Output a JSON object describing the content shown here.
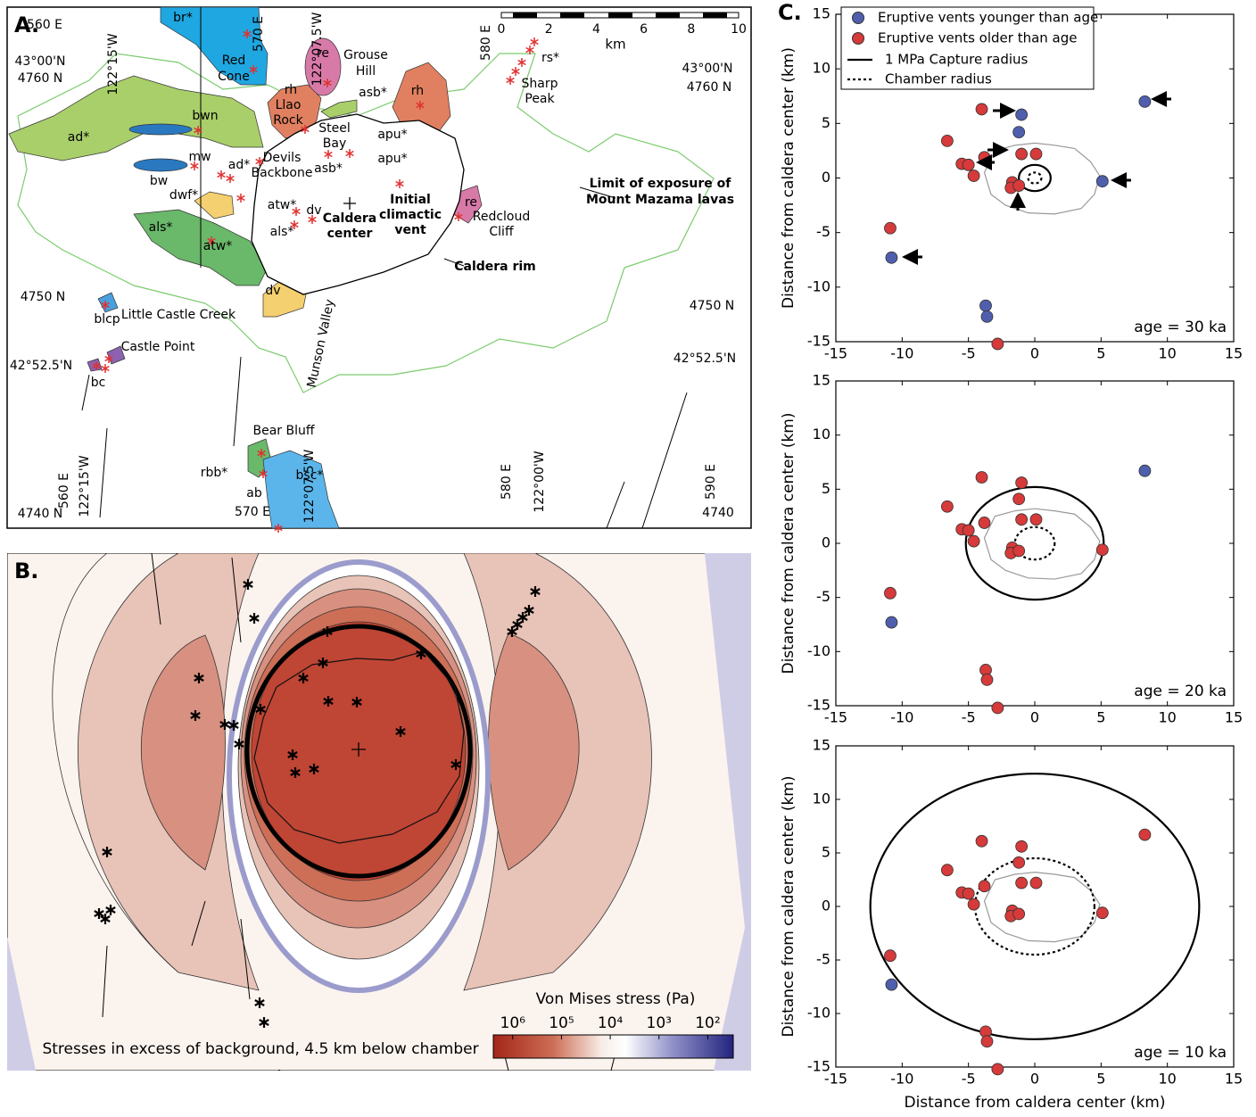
{
  "figure_a": {
    "panel_label": "A.",
    "labels": [
      "560 E",
      "br*",
      "Red",
      "Cone",
      "re",
      "Grouse",
      "Hill",
      "122°15'W",
      "570 E",
      "122°07.5'W",
      "580 E",
      "rs*",
      "Sharp",
      "Peak",
      "43°00'N",
      "4760 N",
      "43°00'N",
      "4760 N",
      "rh",
      "Llao",
      "Rock",
      "asb*",
      "rh",
      "bwn",
      "ad*",
      "Steel",
      "Bay",
      "apu*",
      "apu*",
      "mw",
      "ad*",
      "Devils",
      "Backbone",
      "asb*",
      "bw",
      "dwf*",
      "re",
      "Limit of exposure of",
      "Mount Mazama lavas",
      "Initial",
      "climactic",
      "vent",
      "atw*",
      "dv",
      "als*",
      "Caldera",
      "center",
      "als*",
      "atw*",
      "Redcloud",
      "Cliff",
      "Caldera rim",
      "4750 N",
      "blcp",
      "Little Castle Creek",
      "dv",
      "4750 N",
      "Munson Valley",
      "Castle Point",
      "42°52.5'N",
      "42°52.5'N",
      "bc",
      "Bear Bluff",
      "rbb*",
      "ab",
      "bsc*",
      "560 E",
      "122°15'W",
      "122°07.5'W",
      "570 E",
      "580 E",
      "122°00'W",
      "590 E",
      "4740 N",
      "4740"
    ],
    "scale_bar": {
      "ticks": [
        0,
        2,
        4,
        6,
        8,
        10
      ],
      "unit": "km"
    }
  },
  "figure_b": {
    "panel_label": "B.",
    "caption": "Stresses in excess of background, 4.5 km below chamber",
    "colorbar": {
      "title": "Von Mises stress (Pa)",
      "log": true,
      "lim": [
        2500000,
        30
      ],
      "ticks": [
        {
          "value": 1000000,
          "label": "10⁶"
        },
        {
          "value": 100000,
          "label": "10⁵"
        },
        {
          "value": 10000,
          "label": "10⁴"
        },
        {
          "value": 1000,
          "label": "10³"
        },
        {
          "value": 100,
          "label": "10²"
        }
      ]
    }
  },
  "panel_c_label": "C.",
  "chart_data": [
    {
      "type": "scatter",
      "annotation": "age = 30 ka",
      "ylabel": "Distance from caldera center (km)",
      "xlim": [
        -15,
        15
      ],
      "ylim": [
        -15,
        15
      ],
      "xticks": [
        -15,
        -10,
        -5,
        0,
        5,
        10,
        15
      ],
      "yticks": [
        -15,
        -10,
        -5,
        0,
        5,
        10,
        15
      ],
      "series": [
        {
          "name": "Eruptive vents younger than age",
          "color": "#4f5fae",
          "x": [
            -1,
            -1.2,
            8.3,
            5.1,
            -10.8,
            -3.7,
            -3.6
          ],
          "y": [
            5.8,
            4.2,
            7,
            -0.3,
            -7.3,
            -11.7,
            -12.7
          ]
        },
        {
          "name": "Eruptive vents older than age",
          "color": "#d63a3a",
          "x": [
            -4,
            -6.6,
            -3.8,
            -1,
            0.1,
            -5.5,
            -5,
            -4.6,
            -1.7,
            -1.8,
            -1.2,
            -10.9,
            -2.8
          ],
          "y": [
            6.3,
            3.4,
            1.9,
            2.2,
            2.2,
            1.3,
            1.2,
            0.2,
            -0.4,
            -0.9,
            -0.7,
            -4.6,
            -15.2
          ]
        }
      ],
      "circles": [
        {
          "name": "1 MPa Capture radius",
          "radius": 1.2,
          "style": "solid"
        },
        {
          "name": "Chamber radius",
          "radius": 0.5,
          "style": "dotted"
        }
      ]
    },
    {
      "type": "scatter",
      "annotation": "age = 20 ka",
      "ylabel": "Distance from caldera center (km)",
      "xlim": [
        -15,
        15
      ],
      "ylim": [
        -15,
        15
      ],
      "xticks": [
        -15,
        -10,
        -5,
        0,
        5,
        10,
        15
      ],
      "yticks": [
        -15,
        -10,
        -5,
        0,
        5,
        10,
        15
      ],
      "series": [
        {
          "color": "#4f5fae",
          "x": [
            8.3,
            -10.8
          ],
          "y": [
            6.7,
            -7.3
          ]
        },
        {
          "color": "#d63a3a",
          "x": [
            -4,
            -1,
            -6.6,
            -1.2,
            -3.8,
            -1,
            0.1,
            -5.5,
            -5,
            -4.6,
            -1.7,
            -1.8,
            -1.2,
            5.1,
            -10.9,
            -3.7,
            -3.6,
            -2.8
          ],
          "y": [
            6.1,
            5.6,
            3.4,
            4.1,
            1.9,
            2.2,
            2.2,
            1.3,
            1.2,
            0.2,
            -0.4,
            -0.9,
            -0.7,
            -0.6,
            -4.6,
            -11.7,
            -12.6,
            -15.2
          ]
        }
      ],
      "circles": [
        {
          "radius": 5.2,
          "style": "solid"
        },
        {
          "radius": 1.5,
          "style": "dotted"
        }
      ]
    },
    {
      "type": "scatter",
      "annotation": "age = 10 ka",
      "ylabel": "Distance from caldera center (km)",
      "xlabel": "Distance from caldera center (km)",
      "xlim": [
        -15,
        15
      ],
      "ylim": [
        -15,
        15
      ],
      "xticks": [
        -15,
        -10,
        -5,
        0,
        5,
        10,
        15
      ],
      "yticks": [
        -15,
        -10,
        -5,
        0,
        5,
        10,
        15
      ],
      "series": [
        {
          "color": "#4f5fae",
          "x": [
            -10.8
          ],
          "y": [
            -7.3
          ]
        },
        {
          "color": "#d63a3a",
          "x": [
            -4,
            -1,
            -6.6,
            -1.2,
            -3.8,
            -1,
            0.1,
            -5.5,
            -5,
            -4.6,
            -1.7,
            -1.8,
            -1.2,
            5.1,
            -10.9,
            -3.7,
            -3.6,
            -2.8,
            8.3
          ],
          "y": [
            6.1,
            5.6,
            3.4,
            4.1,
            1.9,
            2.2,
            2.2,
            1.3,
            1.2,
            0.2,
            -0.4,
            -0.9,
            -0.7,
            -0.6,
            -4.6,
            -11.7,
            -12.6,
            -15.2,
            6.7
          ]
        }
      ],
      "circles": [
        {
          "radius": 12.4,
          "style": "solid"
        },
        {
          "radius": 4.5,
          "style": "dotted"
        }
      ]
    }
  ]
}
